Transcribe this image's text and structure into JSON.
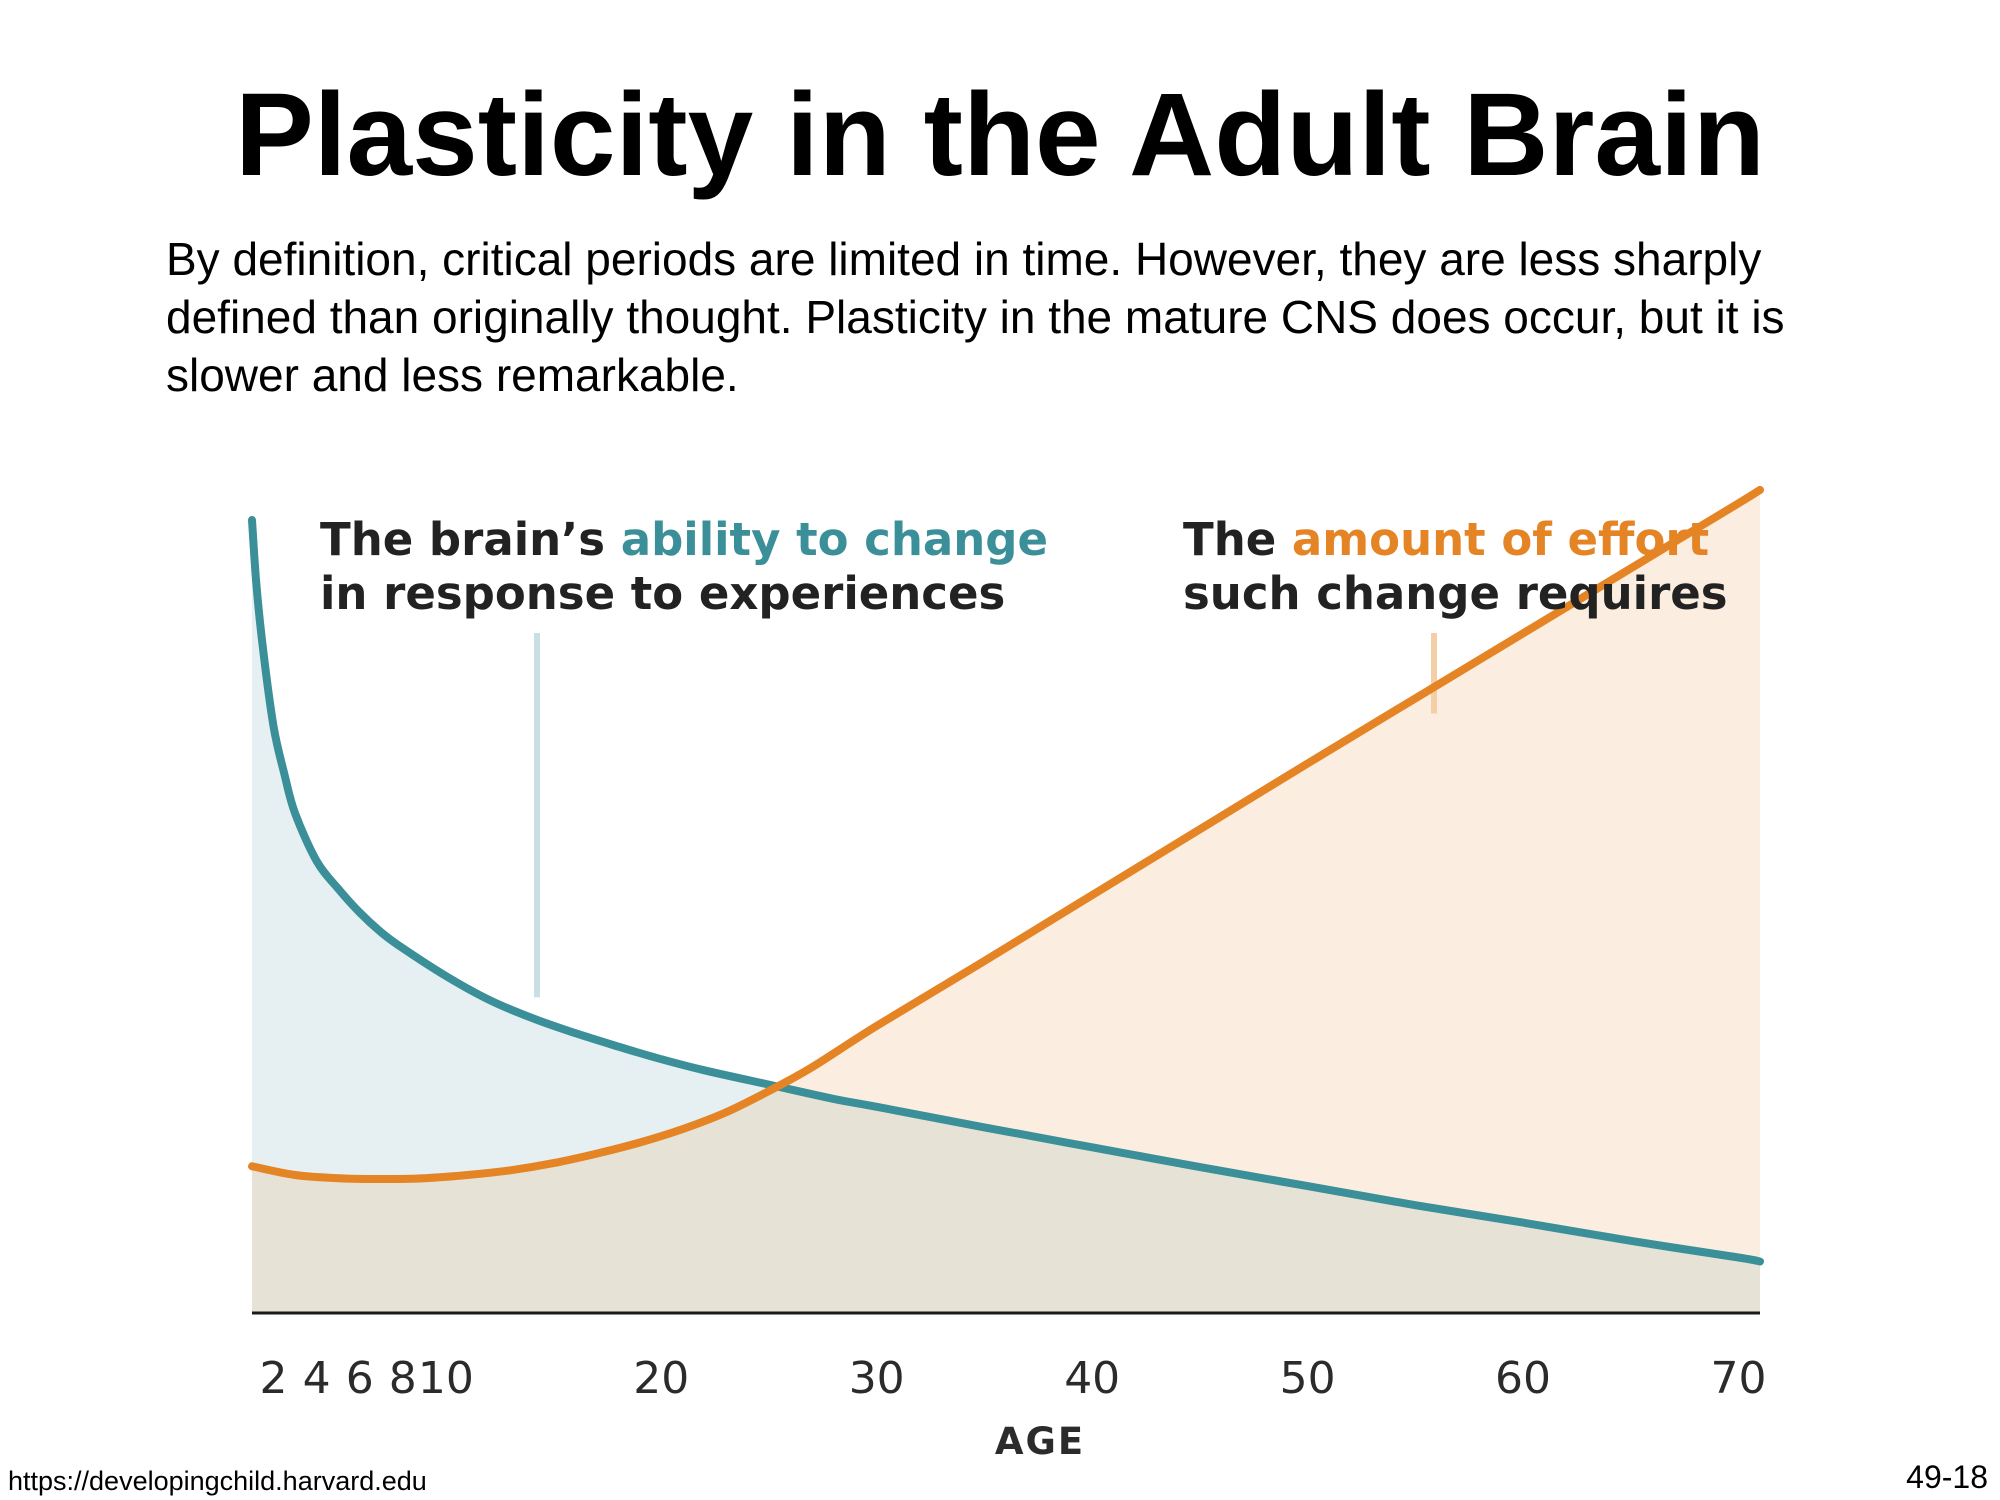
{
  "slide": {
    "title": "Plasticity in the Adult Brain",
    "intro": "By definition, critical periods are limited in time. However, they are less sharply defined than originally thought. Plasticity in the mature CNS does occur, but it is slower and less remarkable.",
    "source": "https://developingchild.harvard.edu",
    "slide_number": "49-18"
  },
  "chart_data": {
    "type": "area",
    "title": "",
    "xlabel": "AGE",
    "ylabel": "",
    "x_ticks": [
      2,
      4,
      6,
      8,
      10,
      20,
      30,
      40,
      50,
      60,
      70
    ],
    "xlim": [
      1,
      71
    ],
    "ylim": [
      0,
      100
    ],
    "grid": false,
    "legend": "none",
    "series": [
      {
        "color": "#3b8f99",
        "fill_color": "#e6f0f2",
        "x": [
          1,
          1.2,
          1.5,
          2,
          2.5,
          3,
          4,
          5,
          6,
          7,
          8,
          10,
          12,
          14,
          16,
          18,
          20,
          22,
          25,
          28,
          30,
          35,
          40,
          45,
          50,
          55,
          60,
          65,
          70,
          71
        ],
        "y": [
          100,
          92,
          84,
          74,
          68,
          63,
          57,
          53.5,
          50.5,
          48,
          46,
          42.5,
          39.5,
          37.2,
          35.3,
          33.6,
          32,
          30.6,
          28.8,
          27,
          26,
          23.4,
          20.9,
          18.4,
          16,
          13.6,
          11.4,
          9.1,
          7,
          6.5
        ]
      },
      {
        "color": "#e58424",
        "fill_color": "#fbeee1",
        "x": [
          1,
          3,
          5,
          7,
          9,
          11,
          13,
          15,
          17,
          19,
          21,
          23,
          25,
          27,
          30,
          35,
          40,
          45,
          50,
          55,
          60,
          65,
          70,
          71
        ],
        "y": [
          18.5,
          17.4,
          17,
          16.9,
          17,
          17.4,
          18,
          18.9,
          20.1,
          21.5,
          23.2,
          25.3,
          28,
          31,
          36.2,
          44.4,
          52.7,
          61,
          69.3,
          77.5,
          85.7,
          93.9,
          102.1,
          103.8
        ]
      }
    ],
    "annotations": [
      {
        "line1": [
          {
            "text": "The brain’s ",
            "color": "#222222"
          },
          {
            "text": "ability to change",
            "color": "#3b8f99"
          }
        ],
        "line2": [
          {
            "text": "in response to experiences",
            "color": "#222222"
          }
        ],
        "pointer_color": "#c8e0e4"
      },
      {
        "line1": [
          {
            "text": "The ",
            "color": "#222222"
          },
          {
            "text": "amount of effort",
            "color": "#e58424"
          }
        ],
        "line2": [
          {
            "text": "such change requires",
            "color": "#222222"
          }
        ],
        "pointer_color": "#f4cfa6"
      }
    ],
    "overlap_fill": "#e6e3d6",
    "axis_color": "#1a1a1a"
  }
}
